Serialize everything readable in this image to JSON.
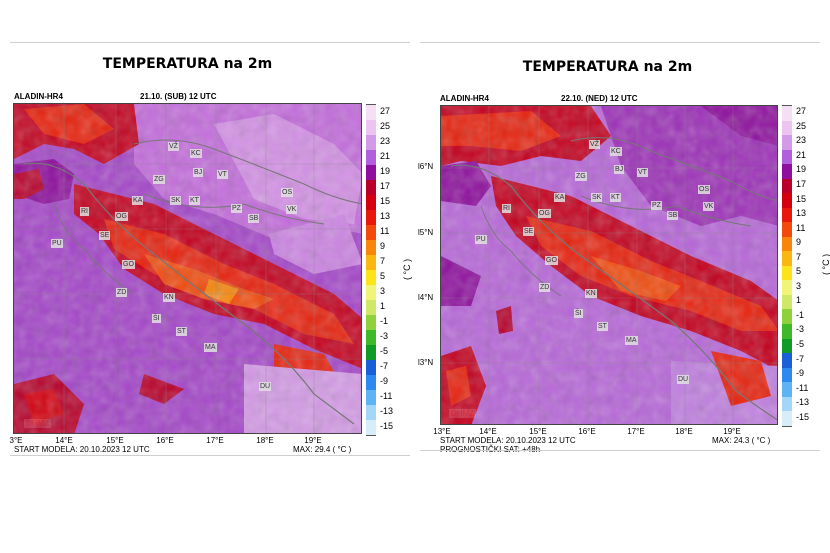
{
  "panels": [
    {
      "title": "TEMPERATURA na 2m",
      "model": "ALADIN-HR4",
      "date": "21.10. (SUB) 12 UTC",
      "start": "START MODELA: 20.10.2023 12 UTC",
      "forecast": "",
      "max": "MAX: 29.4 ( °C )",
      "lon_ticks": [
        "3°E",
        "14°E",
        "15°E",
        "16°E",
        "17°E",
        "18°E",
        "19°E"
      ],
      "lat_ticks": [],
      "unit": "( °C )",
      "logo": "DHMZ"
    },
    {
      "title": "TEMPERATURA na 2m",
      "model": "ALADIN-HR4",
      "date": "22.10. (NED) 12 UTC",
      "start": "START MODELA: 20.10.2023 12 UTC",
      "forecast": "PROGNOSTIČKI SAT: +48h",
      "max": "MAX: 24.3 ( °C )",
      "lon_ticks": [
        "13°E",
        "14°E",
        "15°E",
        "16°E",
        "17°E",
        "18°E",
        "19°E"
      ],
      "lat_ticks": [
        "l6°N",
        "l5°N",
        "l4°N",
        "l3°N"
      ],
      "unit": "( °C )",
      "logo": "DHMZ"
    }
  ],
  "cities": [
    "VŽ",
    "KC",
    "ZG",
    "BJ",
    "VT",
    "KA",
    "SK",
    "KT",
    "OS",
    "PZ",
    "VK",
    "SB",
    "RI",
    "OG",
    "PU",
    "SE",
    "GO",
    "ZD",
    "KN",
    "ŠI",
    "ST",
    "MA",
    "DU"
  ],
  "colorbar": {
    "labels": [
      "27",
      "25",
      "23",
      "21",
      "19",
      "17",
      "15",
      "13",
      "11",
      "9",
      "7",
      "5",
      "3",
      "1",
      "-1",
      "-3",
      "-5",
      "-7",
      "-9",
      "-11",
      "-13",
      "-15"
    ],
    "colors": [
      "#f4dff4",
      "#ecc4f0",
      "#d39ae6",
      "#b060dc",
      "#8e0f9e",
      "#b8002a",
      "#d40010",
      "#e8180e",
      "#f24a0c",
      "#f7860a",
      "#f9b712",
      "#fbe41a",
      "#f0f57a",
      "#cfe86a",
      "#8fd13c",
      "#3fb829",
      "#129a26",
      "#1a5fd8",
      "#2b89ef",
      "#5fb3f5",
      "#a4d6f8",
      "#d7eef9"
    ]
  }
}
